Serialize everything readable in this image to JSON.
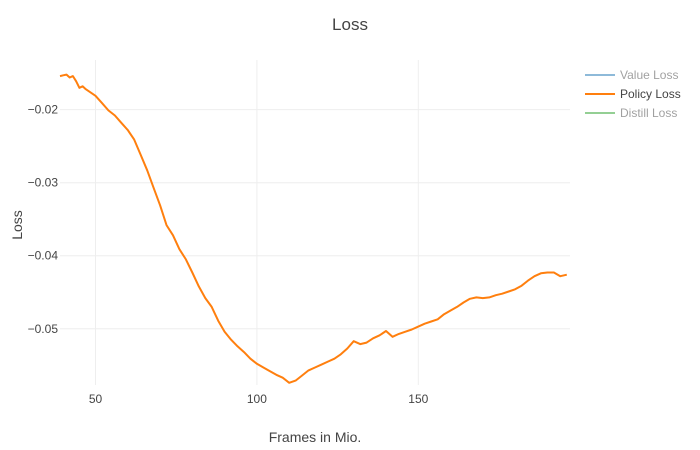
{
  "chart_data": {
    "type": "line",
    "title": "Loss",
    "xlabel": "Frames in Mio.",
    "ylabel": "Loss",
    "xlim": [
      39,
      197
    ],
    "ylim": [
      -0.0577,
      -0.0132
    ],
    "x_ticks": [
      50,
      100,
      150
    ],
    "y_ticks": [
      -0.02,
      -0.03,
      -0.04,
      -0.05
    ],
    "y_tick_labels": [
      "−0.02",
      "−0.03",
      "−0.04",
      "−0.05"
    ],
    "grid": true,
    "legend_position": "top-right",
    "series": [
      {
        "name": "Value Loss",
        "color": "#1f77b4",
        "visible": false,
        "x": [],
        "y": []
      },
      {
        "name": "Policy Loss",
        "color": "#ff7f0e",
        "visible": true,
        "x": [
          39,
          40,
          41,
          42,
          43,
          44,
          45,
          46,
          47,
          48,
          50,
          52,
          54,
          56,
          58,
          60,
          62,
          64,
          66,
          68,
          70,
          72,
          74,
          76,
          78,
          80,
          82,
          84,
          86,
          88,
          90,
          92,
          94,
          96,
          98,
          100,
          102,
          104,
          106,
          108,
          110,
          112,
          114,
          116,
          118,
          120,
          122,
          124,
          126,
          128,
          130,
          132,
          134,
          136,
          138,
          140,
          142,
          144,
          146,
          148,
          150,
          152,
          154,
          156,
          158,
          160,
          162,
          164,
          166,
          168,
          170,
          172,
          174,
          176,
          178,
          180,
          182,
          184,
          186,
          188,
          190,
          192,
          194,
          196
        ],
        "y": [
          -0.0154,
          -0.0153,
          -0.0152,
          -0.0156,
          -0.0154,
          -0.0161,
          -0.017,
          -0.0168,
          -0.0172,
          -0.0175,
          -0.0181,
          -0.0191,
          -0.0201,
          -0.0208,
          -0.0218,
          -0.0228,
          -0.0241,
          -0.0262,
          -0.0283,
          -0.0307,
          -0.0331,
          -0.0358,
          -0.0372,
          -0.0391,
          -0.0405,
          -0.0423,
          -0.0442,
          -0.0458,
          -0.047,
          -0.0489,
          -0.0504,
          -0.0515,
          -0.0524,
          -0.0532,
          -0.0541,
          -0.0548,
          -0.0553,
          -0.0558,
          -0.0563,
          -0.0567,
          -0.0574,
          -0.0571,
          -0.0564,
          -0.0557,
          -0.0553,
          -0.0549,
          -0.0545,
          -0.0541,
          -0.0535,
          -0.0527,
          -0.0517,
          -0.0521,
          -0.0519,
          -0.0513,
          -0.0509,
          -0.0503,
          -0.0511,
          -0.0507,
          -0.0504,
          -0.0501,
          -0.0497,
          -0.0493,
          -0.049,
          -0.0487,
          -0.048,
          -0.0475,
          -0.047,
          -0.0464,
          -0.0459,
          -0.0457,
          -0.0458,
          -0.0457,
          -0.0454,
          -0.0452,
          -0.0449,
          -0.0446,
          -0.0441,
          -0.0434,
          -0.0428,
          -0.0424,
          -0.0423,
          -0.0423,
          -0.0428,
          -0.0426
        ]
      },
      {
        "name": "Distill Loss",
        "color": "#2ca02c",
        "visible": false,
        "x": [],
        "y": []
      }
    ]
  }
}
